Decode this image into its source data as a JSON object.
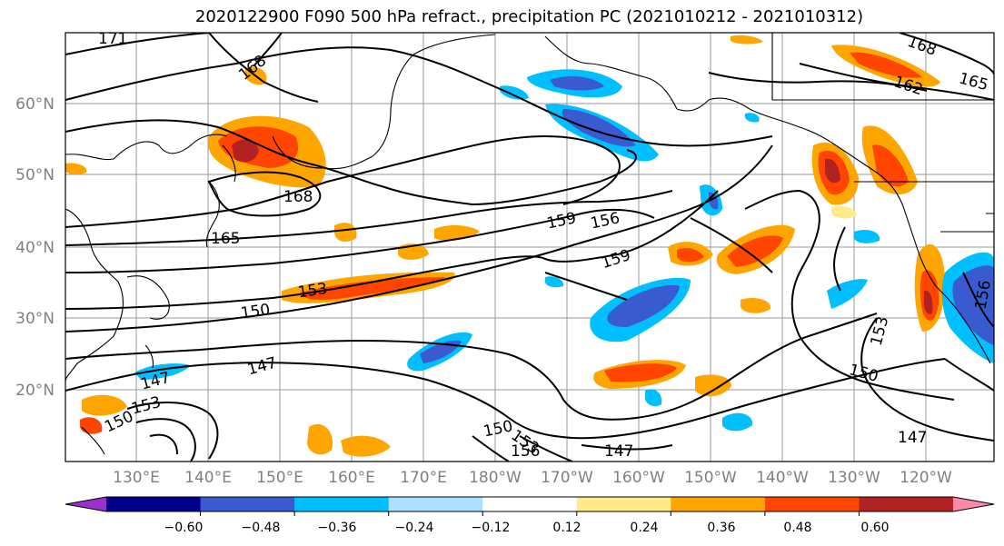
{
  "title": "2020122900 F090 500 hPa refract., precipitation PC (2021010212 - 2021010312)",
  "lat_labels": [
    "60°N",
    "50°N",
    "40°N",
    "30°N",
    "20°N"
  ],
  "lon_labels": [
    "130°E",
    "140°E",
    "150°E",
    "160°E",
    "170°E",
    "180°W",
    "170°W",
    "160°W",
    "150°W",
    "140°W",
    "130°W",
    "120°W"
  ],
  "colorbar": {
    "colors": [
      "#9932CC",
      "#00008B",
      "#3A5BD0",
      "#00BFFF",
      "#ADDFFF",
      "#FFFFFF",
      "#FFEB8A",
      "#FFA500",
      "#FF4500",
      "#B22222",
      "#FF88AA"
    ],
    "ticks": [
      "−0.60",
      "−0.48",
      "−0.36",
      "−0.24",
      "−0.12",
      "0.12",
      "0.24",
      "0.36",
      "0.48",
      "0.60"
    ]
  },
  "contour_labels": [
    "171",
    "168",
    "168",
    "162",
    "165",
    "168",
    "165",
    "159",
    "156",
    "159",
    "153",
    "150",
    "147",
    "147",
    "153",
    "150",
    "150",
    "153",
    "156",
    "147",
    "153",
    "150",
    "147",
    "156"
  ]
}
